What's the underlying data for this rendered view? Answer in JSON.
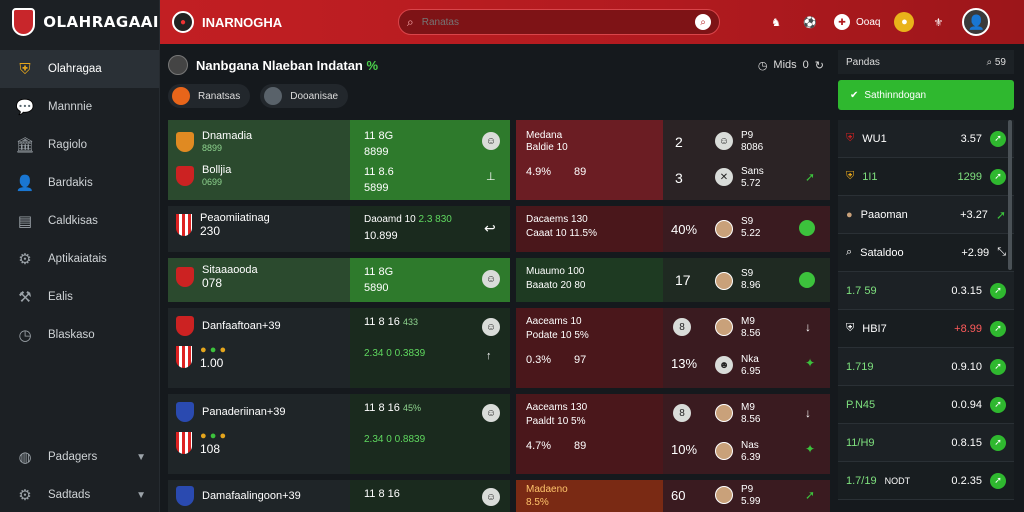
{
  "sidebar": {
    "brand": "OLAHRAGAAI",
    "brand_sub": "",
    "items": [
      {
        "label": "Olahragaa",
        "icon": "team-shield-icon"
      },
      {
        "label": "Mannnie",
        "icon": "chat-icon"
      },
      {
        "label": "Ragiolo",
        "icon": "building-icon"
      },
      {
        "label": "Bardakis",
        "icon": "user-icon"
      },
      {
        "label": "Caldkisas",
        "icon": "document-icon"
      },
      {
        "label": "Aptikaiatais",
        "icon": "settings-icon"
      },
      {
        "label": "Ealis",
        "icon": "link-icon"
      },
      {
        "label": "Blaskaso",
        "icon": "clock-icon"
      }
    ],
    "bottom_items": [
      {
        "label": "Padagers",
        "icon": "globe-icon"
      },
      {
        "label": "Sadtads",
        "icon": "gear-icon"
      }
    ]
  },
  "topbar": {
    "title": "INARNOGHA",
    "search_placeholder": "Ranatas",
    "lang": "Ooaq"
  },
  "main": {
    "title": "Nanbgana Nlaeban Indatan",
    "title_badge": "%",
    "clock_label": "Mids",
    "clock_value": "0",
    "filters": [
      "Ranatsas",
      "Dooanisae"
    ]
  },
  "rows": [
    {
      "team1": "Dnamadia",
      "team1_sub": "8899",
      "team2": "Bolljia",
      "team2_sub": "0699",
      "mid1": "11 8G",
      "mid1_sub": "8899",
      "mid2": "11 8.6",
      "mid2_sub": "5899",
      "m1": "Medana",
      "m1_sub": "Baldie 10",
      "m2": "4.9%",
      "m2_b": "89",
      "o1": "2",
      "o2": "3",
      "n1": "P9",
      "n1_sub": "8086",
      "n2": "Sans",
      "n2_sub": "5.72"
    },
    {
      "team1": "Peaomiiatinag",
      "team1_sub": "230",
      "mid1": "Daoamd 10",
      "mid1_b": "2.3 830",
      "mid2": "10.899",
      "m1": "Dacaems 130",
      "m2": "Caaat 10 11.5%",
      "o1": "40%",
      "n1": "S9",
      "n1_sub": "5.22"
    },
    {
      "team1": "Sitaaaooda",
      "team1_sub": "078",
      "mid1": "11 8G",
      "mid1_sub": "5890",
      "m1": "Muaumo 100",
      "m2": "Baaato 20 80",
      "o1": "17",
      "n1": "S9",
      "n1_sub": "8.96"
    },
    {
      "team1": "Danfaaftoan+39",
      "team1_sub": "1.00",
      "mid1": "11 8 16",
      "mid1_b": "433",
      "mid2": "2.34 0",
      "mid2_b": "0.3839",
      "m1": "Aaceams 10",
      "m2": "Podate 10 5%",
      "m3": "0.3%",
      "m3_b": "97",
      "o1": "8",
      "o2": "13%",
      "n1": "M9",
      "n1_sub": "8.56",
      "n2": "Nka",
      "n2_sub": "6.95"
    },
    {
      "team1": "Panaderiinan+39",
      "team1_sub": "108",
      "mid1": "11 8 16",
      "mid1_b": "45%",
      "mid2": "2.34 0",
      "mid2_b": "0.8839",
      "m1": "Aaceams 130",
      "m2": "Paaldt 10 5%",
      "m3": "4.7%",
      "m3_b": "89",
      "o1": "8",
      "o2": "10%",
      "n1": "M9",
      "n1_sub": "8.56",
      "n2": "Nas",
      "n2_sub": "6.39"
    },
    {
      "team1": "Damafaalingoon+39",
      "mid1": "11 8 16",
      "m1": "Madaeno",
      "m1_sub": "8.5%",
      "o1": "60",
      "n1": "P9",
      "n1_sub": "5.99"
    }
  ],
  "rpanel": {
    "head": "Pandas",
    "head_right": "59",
    "button": "Sathinndogan",
    "list": [
      {
        "name": "WU1",
        "val": "3.57"
      },
      {
        "name": "1I1",
        "val": "1299"
      },
      {
        "name": "Paaoman",
        "val": "+3.27"
      },
      {
        "name": "Sataldoo",
        "val": "+2.99"
      },
      {
        "name": "1.7 59",
        "val": "0.3.15"
      },
      {
        "name": "HBI7",
        "val": "+8.99"
      },
      {
        "name": "1.719",
        "val": "0.9.10"
      },
      {
        "name": "P.N45",
        "val": "0.0.94"
      },
      {
        "name": "11/H9",
        "val": "0.8.15"
      },
      {
        "name": "1.7/19",
        "name_b": "NODT",
        "val": "0.2.35"
      }
    ]
  }
}
